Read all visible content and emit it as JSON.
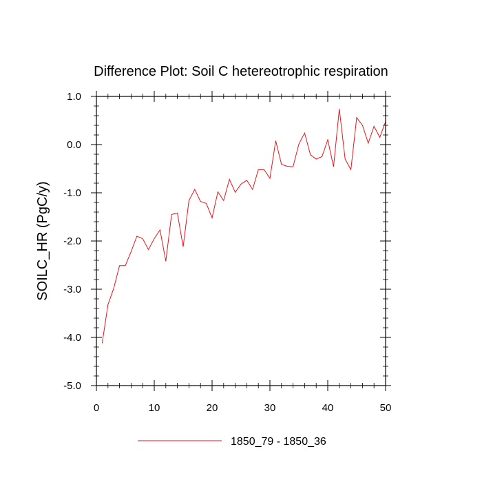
{
  "chart_data": {
    "type": "line",
    "title": "Difference Plot: Soil C hetereotrophic respiration",
    "xlabel": "",
    "ylabel": "SOILC_HR  (PgC/y)",
    "xlim": [
      0,
      50
    ],
    "ylim": [
      -5.0,
      1.0
    ],
    "x_ticks": [
      0,
      10,
      20,
      30,
      40,
      50
    ],
    "x_tick_labels": [
      "0",
      "10",
      "20",
      "30",
      "40",
      "50"
    ],
    "y_ticks": [
      1.0,
      0.0,
      -1.0,
      -2.0,
      -3.0,
      -4.0,
      -5.0
    ],
    "y_tick_labels": [
      "1.0",
      "0.0",
      "-1.0",
      "-2.0",
      "-3.0",
      "-4.0",
      "-5.0"
    ],
    "legend_position": "bottom-center",
    "series": [
      {
        "name": "1850_79 - 1850_36",
        "color": "#e8141b",
        "x": [
          1,
          2,
          3,
          4,
          5,
          6,
          7,
          8,
          9,
          10,
          11,
          12,
          13,
          14,
          15,
          16,
          17,
          18,
          19,
          20,
          21,
          22,
          23,
          24,
          25,
          26,
          27,
          28,
          29,
          30,
          31,
          32,
          33,
          34,
          35,
          36,
          37,
          38,
          39,
          40,
          41,
          42,
          43,
          44,
          45,
          46,
          47,
          48,
          49,
          50
        ],
        "values": [
          -4.12,
          -3.32,
          -2.98,
          -2.51,
          -2.51,
          -2.22,
          -1.9,
          -1.95,
          -2.18,
          -1.95,
          -1.77,
          -2.42,
          -1.45,
          -1.42,
          -2.12,
          -1.16,
          -0.93,
          -1.18,
          -1.22,
          -1.52,
          -0.98,
          -1.16,
          -0.72,
          -0.99,
          -0.82,
          -0.74,
          -0.93,
          -0.52,
          -0.52,
          -0.7,
          0.08,
          -0.41,
          -0.45,
          -0.46,
          0.01,
          0.24,
          -0.21,
          -0.3,
          -0.25,
          0.1,
          -0.46,
          0.74,
          -0.3,
          -0.52,
          0.56,
          0.4,
          0.03,
          0.38,
          0.15,
          0.48
        ]
      }
    ]
  }
}
